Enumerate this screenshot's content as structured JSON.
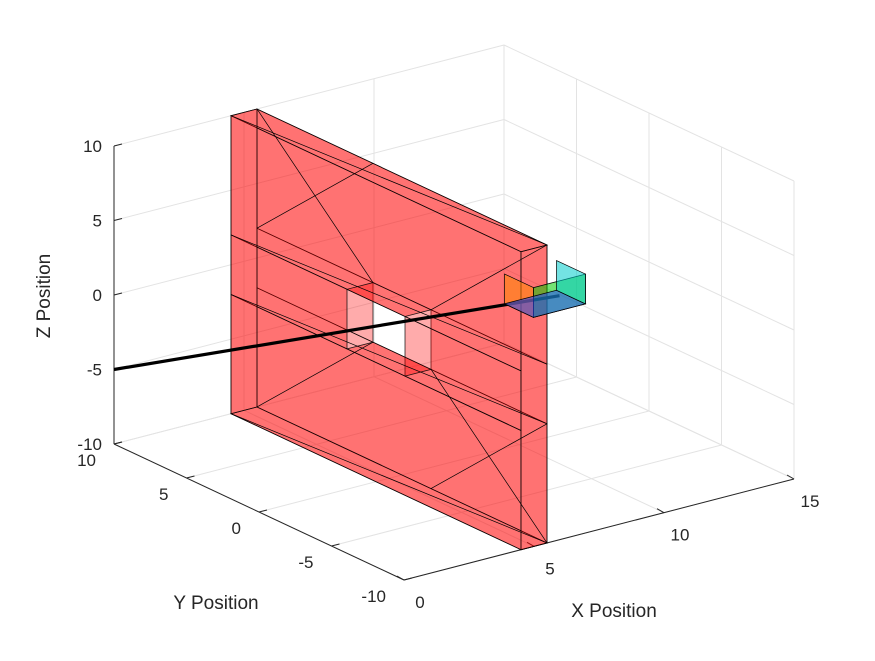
{
  "chart_data": {
    "type": "3d-surface",
    "xlabel": "X Position",
    "ylabel": "Y Position",
    "zlabel": "Z Position",
    "xlim": [
      0,
      15
    ],
    "ylim": [
      -10,
      10
    ],
    "zlim": [
      -10,
      10
    ],
    "grid": true,
    "x_ticks": [
      {
        "value": 0,
        "label": "0"
      },
      {
        "value": 5,
        "label": "5"
      },
      {
        "value": 10,
        "label": "10"
      },
      {
        "value": 15,
        "label": "15"
      }
    ],
    "y_ticks": [
      {
        "value": -10,
        "label": "-10"
      },
      {
        "value": -5,
        "label": "-5"
      },
      {
        "value": 0,
        "label": "0"
      },
      {
        "value": 5,
        "label": "5"
      },
      {
        "value": 10,
        "label": "10"
      }
    ],
    "z_ticks": [
      {
        "value": -10,
        "label": "-10"
      },
      {
        "value": -5,
        "label": "-5"
      },
      {
        "value": 0,
        "label": "0"
      },
      {
        "value": 5,
        "label": "5"
      },
      {
        "value": 10,
        "label": "10"
      }
    ],
    "wall": {
      "color": "#ff0000",
      "opacity": 0.55,
      "x_range": [
        4.5,
        5.5
      ],
      "y_range": [
        -10,
        10
      ],
      "z_range": [
        -10,
        10
      ],
      "opening": {
        "y_range": [
          -2,
          2
        ],
        "z_range": [
          -2,
          2
        ]
      }
    },
    "small_box": {
      "x_range": [
        10,
        12
      ],
      "y_range": [
        -1,
        1
      ],
      "z_range": [
        -1,
        1
      ],
      "face_colors": [
        "#ff8800",
        "#00cc00",
        "#2244ff",
        "#00cccc"
      ]
    },
    "trajectory": {
      "color": "#000000",
      "start": [
        0,
        10,
        -5
      ],
      "end": [
        11,
        -1,
        0
      ]
    }
  }
}
